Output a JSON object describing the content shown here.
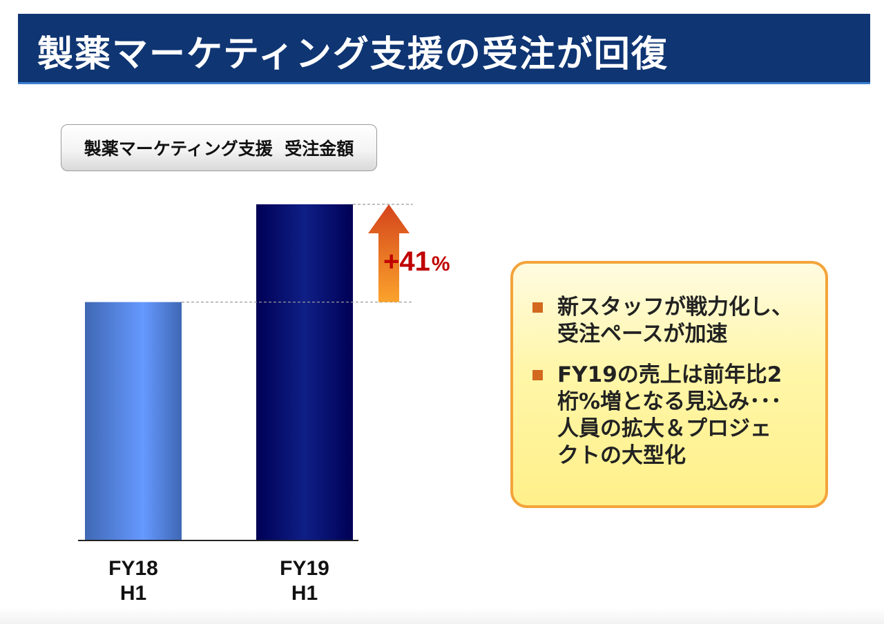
{
  "slide": {
    "title": "製薬マーケティング支援の受注が回復"
  },
  "chart_label": "製薬マーケティング支援  受注金額",
  "chart_data": {
    "type": "bar",
    "categories": [
      "FY18\nH1",
      "FY19\nH1"
    ],
    "category_lines": [
      [
        "FY18",
        "H1"
      ],
      [
        "FY19",
        "H1"
      ]
    ],
    "values": [
      100,
      141
    ],
    "ylim": [
      0,
      141
    ],
    "grid": false,
    "annotation": {
      "number": "+41",
      "unit": "%"
    },
    "colors": {
      "bar_fy18_edge": "#3f68b4",
      "bar_fy18_mid": "#6699ff",
      "bar_fy19_edge": "#000055",
      "bar_fy19_mid": "#0f1f86",
      "arrow_top": "#d4441c",
      "arrow_bottom": "#fba32c",
      "annotation_text": "#c00000"
    }
  },
  "callout": {
    "bullets": [
      {
        "lines": [
          "新スタッフが戦力化し、",
          "受注ペースが加速"
        ]
      },
      {
        "lines": [
          "FY19の売上は前年比2",
          "桁%増となる見込み･･･",
          "人員の拡大＆プロジェ",
          "クトの大型化"
        ]
      }
    ]
  }
}
